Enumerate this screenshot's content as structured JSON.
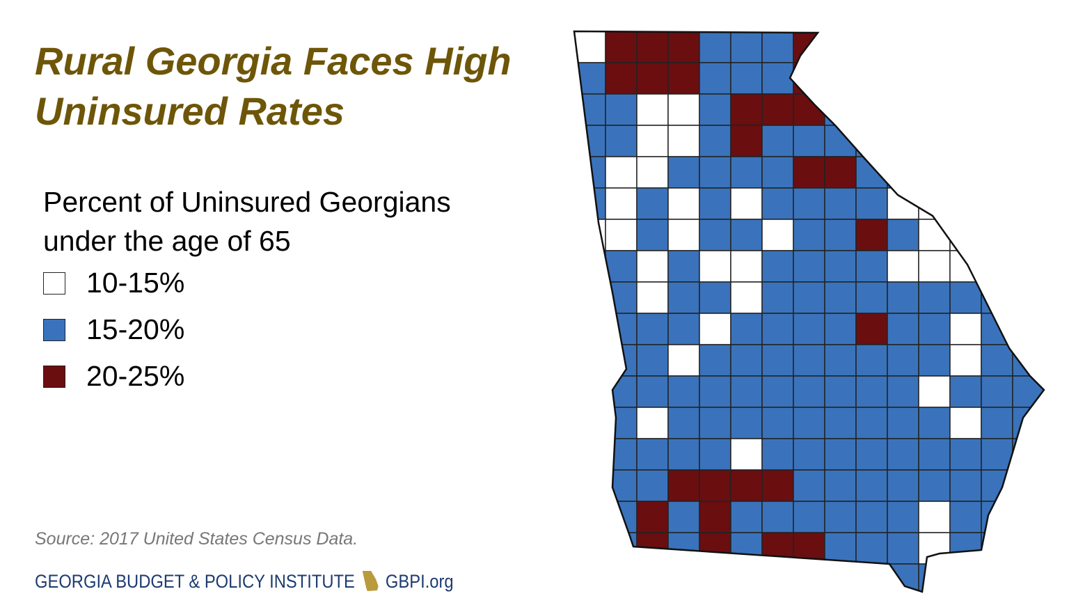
{
  "title": [
    "Rural Georgia Faces High",
    "Uninsured Rates"
  ],
  "legend": {
    "title": [
      "Percent of Uninsured Georgians",
      "under the age of 65"
    ],
    "items": [
      {
        "label": "10-15%",
        "color": "#ffffff"
      },
      {
        "label": "15-20%",
        "color": "#3a73bb"
      },
      {
        "label": "20-25%",
        "color": "#6a0e10"
      }
    ]
  },
  "source": "Source: 2017 United States Census Data.",
  "footer": {
    "org": "GEORGIA BUDGET & POLICY INSTITUTE",
    "url": "GBPI.org"
  }
}
